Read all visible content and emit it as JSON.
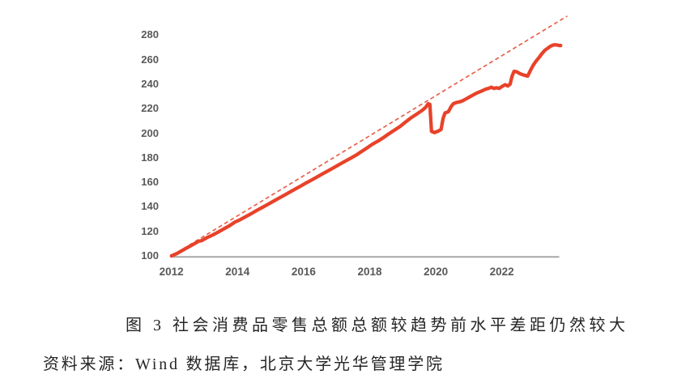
{
  "figure": {
    "caption": "图 3 社会消费品零售总额总额较趋势前水平差距仍然较大",
    "source": "资料来源：Wind 数据库，北京大学光华管理学院"
  },
  "colors": {
    "solid_line": "#e8422a",
    "dashed_line": "#e8614b",
    "axis_line": "#a7a7a7",
    "tick_text": "#595959"
  },
  "chart_data": {
    "type": "line",
    "title": "",
    "xlabel": "",
    "ylabel": "",
    "grid": false,
    "legend": "none",
    "xlim": [
      2012,
      2024.1
    ],
    "ylim": [
      100,
      296
    ],
    "x_ticks": [
      2012,
      2014,
      2016,
      2018,
      2020,
      2022
    ],
    "y_ticks": [
      100,
      120,
      140,
      160,
      180,
      200,
      220,
      240,
      260,
      280
    ],
    "series": [
      {
        "name": "retail-sales-actual",
        "style": "solid",
        "points": [
          [
            2012.0,
            100
          ],
          [
            2012.17,
            102
          ],
          [
            2012.33,
            104.5
          ],
          [
            2012.5,
            107
          ],
          [
            2012.67,
            109.5
          ],
          [
            2012.83,
            112
          ],
          [
            2012.92,
            112.5
          ],
          [
            2013.08,
            115
          ],
          [
            2013.25,
            117
          ],
          [
            2013.42,
            119.5
          ],
          [
            2013.58,
            122
          ],
          [
            2013.75,
            124.5
          ],
          [
            2013.92,
            127.5
          ],
          [
            2014.08,
            129.5
          ],
          [
            2014.25,
            132
          ],
          [
            2014.42,
            134.5
          ],
          [
            2014.58,
            137
          ],
          [
            2014.75,
            139.5
          ],
          [
            2014.92,
            142
          ],
          [
            2015.08,
            144.5
          ],
          [
            2015.25,
            147
          ],
          [
            2015.42,
            149.5
          ],
          [
            2015.58,
            152
          ],
          [
            2015.75,
            154.5
          ],
          [
            2015.92,
            157
          ],
          [
            2016.08,
            159.5
          ],
          [
            2016.25,
            162
          ],
          [
            2016.42,
            164.5
          ],
          [
            2016.58,
            167
          ],
          [
            2016.75,
            169.5
          ],
          [
            2016.92,
            172
          ],
          [
            2017.08,
            174.5
          ],
          [
            2017.25,
            177
          ],
          [
            2017.42,
            179.5
          ],
          [
            2017.58,
            182
          ],
          [
            2017.75,
            185
          ],
          [
            2017.92,
            188
          ],
          [
            2018.08,
            191
          ],
          [
            2018.25,
            193.5
          ],
          [
            2018.42,
            196.5
          ],
          [
            2018.58,
            199.5
          ],
          [
            2018.75,
            202.5
          ],
          [
            2018.92,
            205.5
          ],
          [
            2019.08,
            209
          ],
          [
            2019.25,
            212.5
          ],
          [
            2019.42,
            215.5
          ],
          [
            2019.58,
            218.5
          ],
          [
            2019.69,
            221
          ],
          [
            2019.77,
            224
          ],
          [
            2019.82,
            223.5
          ],
          [
            2019.87,
            201.5
          ],
          [
            2019.96,
            200.5
          ],
          [
            2020.06,
            201.5
          ],
          [
            2020.16,
            203
          ],
          [
            2020.22,
            212
          ],
          [
            2020.28,
            216.5
          ],
          [
            2020.38,
            217.5
          ],
          [
            2020.46,
            221.5
          ],
          [
            2020.53,
            224
          ],
          [
            2020.62,
            225
          ],
          [
            2020.72,
            225.5
          ],
          [
            2020.82,
            226.5
          ],
          [
            2020.92,
            228
          ],
          [
            2021.02,
            229.5
          ],
          [
            2021.12,
            231
          ],
          [
            2021.26,
            233
          ],
          [
            2021.4,
            234.5
          ],
          [
            2021.52,
            236
          ],
          [
            2021.6,
            236.5
          ],
          [
            2021.68,
            237.5
          ],
          [
            2021.76,
            236.5
          ],
          [
            2021.84,
            237
          ],
          [
            2021.92,
            236.5
          ],
          [
            2022.0,
            238
          ],
          [
            2022.1,
            239.5
          ],
          [
            2022.18,
            238.5
          ],
          [
            2022.25,
            240
          ],
          [
            2022.31,
            246.5
          ],
          [
            2022.37,
            250.5
          ],
          [
            2022.45,
            250
          ],
          [
            2022.55,
            248.5
          ],
          [
            2022.65,
            247.5
          ],
          [
            2022.78,
            246.5
          ],
          [
            2022.87,
            251.5
          ],
          [
            2022.95,
            255.5
          ],
          [
            2023.03,
            258.5
          ],
          [
            2023.12,
            261.5
          ],
          [
            2023.2,
            264.5
          ],
          [
            2023.3,
            267.5
          ],
          [
            2023.4,
            269.5
          ],
          [
            2023.48,
            271
          ],
          [
            2023.57,
            272
          ],
          [
            2023.66,
            272
          ],
          [
            2023.73,
            271.5
          ],
          [
            2023.78,
            271.5
          ]
        ]
      },
      {
        "name": "pre-pandemic-trend",
        "style": "dashed",
        "points": [
          [
            2012.0,
            100
          ],
          [
            2023.98,
            295.5
          ]
        ]
      }
    ]
  }
}
